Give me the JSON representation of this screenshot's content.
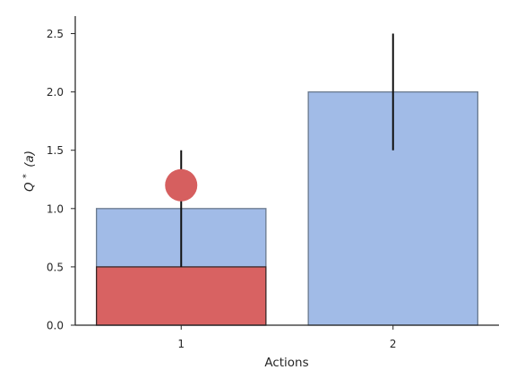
{
  "chart_data": {
    "type": "bar",
    "title": "",
    "xlabel": "Actions",
    "ylabel_prefix": "Q",
    "ylabel_sup": "*",
    "ylabel_suffix": "(a)",
    "categories": [
      "1",
      "2"
    ],
    "ylim": [
      0,
      2.65
    ],
    "yticks": [
      "0.0",
      "0.5",
      "1.0",
      "1.5",
      "2.0",
      "2.5"
    ],
    "grid": false,
    "bars": [
      {
        "category": "1",
        "value": 1.0,
        "error_low": 0.5,
        "error_high": 1.5
      },
      {
        "category": "2",
        "value": 2.0,
        "error_low": 1.5,
        "error_high": 2.5
      }
    ],
    "overlay_bars": [
      {
        "category": "1",
        "value": 0.5
      }
    ],
    "points": [
      {
        "category": "1",
        "value": 1.2
      }
    ],
    "colors": {
      "bar": "#a1bbe7",
      "bar_edge": "#6b7a8e",
      "overlay": "#d86262",
      "overlay_edge": "#3a2a2a",
      "point": "#d65f5f",
      "errorbar": "#111111",
      "axis": "#262626"
    }
  }
}
